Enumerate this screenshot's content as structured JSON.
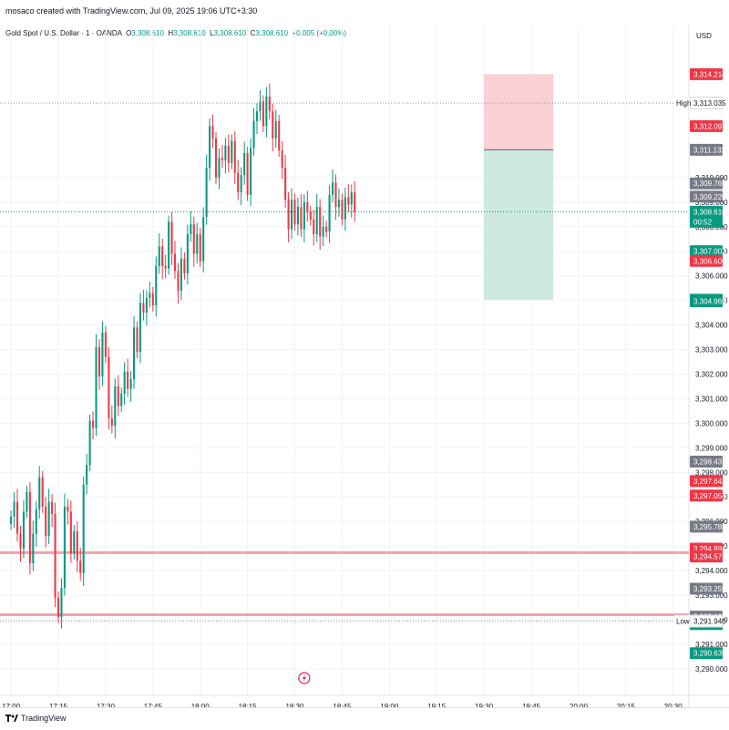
{
  "header": {
    "credit": "mosaco created with TradingView.com, Jul 09, 2025 19:06 UTC+3:30",
    "symbol": "Gold Spot / U.S. Dollar · 1 · OANDA",
    "ohlc": {
      "o_label": "O",
      "o": "3,308.610",
      "h_label": "H",
      "h": "3,308.610",
      "l_label": "L",
      "l": "3,308.610",
      "c_label": "C",
      "c": "3,308.610",
      "change": "+0.005 (+0.00%)"
    }
  },
  "axis": {
    "currency": "USD"
  },
  "footer": {
    "brand": "TradingView"
  },
  "colors": {
    "up": "#089981",
    "down": "#f23645",
    "grid": "#f0f3fa",
    "stop_zone": "#f9d0d4",
    "target_zone": "#cde9e2",
    "level_line": "#f7a1a8",
    "tag_gray": "#787b86"
  },
  "chart_data": {
    "type": "candlestick",
    "ylim": [
      3289.4,
      3315.6
    ],
    "y_ticks": [
      "3,290.000",
      "3,291.000",
      "3,292.000",
      "3,293.000",
      "3,294.000",
      "3,295.000",
      "3,296.000",
      "3,297.000",
      "3,298.000",
      "3,299.000",
      "3,300.000",
      "3,301.000",
      "3,302.000",
      "3,303.000",
      "3,304.000",
      "3,305.000",
      "3,306.000",
      "3,307.000",
      "3,308.000",
      "3,309.000",
      "3,310.000"
    ],
    "x_ticks": [
      "17:00",
      "17:15",
      "17:30",
      "17:45",
      "18:00",
      "18:15",
      "18:30",
      "18:45",
      "19:00",
      "19:15",
      "19:30",
      "19:45",
      "20:00",
      "20:15",
      "20:30"
    ],
    "x_range_minutes": [
      -3.5,
      215
    ],
    "candle_close_path": [
      3296.2,
      3296.8,
      3295.5,
      3294.9,
      3296.4,
      3297.2,
      3294.3,
      3295.5,
      3296.5,
      3297.8,
      3296.6,
      3295.4,
      3296.8,
      3296.3,
      3292.9,
      3292.1,
      3293.3,
      3296.6,
      3296.4,
      3294.7,
      3295.6,
      3294.4,
      3293.9,
      3297.5,
      3298.3,
      3300.1,
      3299.8,
      3303.1,
      3301.9,
      3303.7,
      3302.7,
      3300.2,
      3299.9,
      3301.5,
      3300.7,
      3301.2,
      3302.1,
      3301.4,
      3301.8,
      3303.9,
      3302.9,
      3304.9,
      3304.5,
      3305.1,
      3305.3,
      3304.8,
      3306.4,
      3307.2,
      3306.4,
      3306.3,
      3308.2,
      3306.9,
      3306.2,
      3305.4,
      3306.7,
      3306.1,
      3307.7,
      3308.1,
      3306.9,
      3307.7,
      3306.6,
      3308.4,
      3310.4,
      3312.1,
      3311.6,
      3310.0,
      3310.8,
      3310.7,
      3311.3,
      3310.6,
      3311.5,
      3310.2,
      3309.4,
      3310.1,
      3311.0,
      3309.3,
      3311.2,
      3312.3,
      3312.7,
      3313.1,
      3312.1,
      3313.3,
      3312.7,
      3311.6,
      3312.3,
      3311.1,
      3310.4,
      3309.1,
      3307.9,
      3309.1,
      3308.1,
      3308.8,
      3307.9,
      3309.0,
      3308.6,
      3308.3,
      3307.7,
      3308.8,
      3307.6,
      3308.0,
      3307.8,
      3309.3,
      3309.8,
      3308.8,
      3309.1,
      3308.3,
      3309.2,
      3308.9,
      3309.4,
      3308.6
    ],
    "reference_levels": [
      {
        "label": "High",
        "value": 3313.035,
        "text": "3,313.035"
      },
      {
        "label": "Low",
        "value": 3291.94,
        "text": "3,291.940"
      }
    ],
    "current_price": {
      "value": 3308.61,
      "text": "3,308.610",
      "countdown": "00:52"
    },
    "horizontal_lines": [
      3294.73,
      3292.2
    ],
    "position_tool": {
      "entry": 3311.132,
      "stop": 3314.214,
      "target": 3305.029,
      "start_minute": 150,
      "end_minute": 172
    },
    "price_tags": [
      {
        "value": 3314.214,
        "text": "3,314.214",
        "color": "#f23645"
      },
      {
        "value": 3312.097,
        "text": "3,312.097",
        "color": "#f23645"
      },
      {
        "value": 3311.132,
        "text": "3,311.132",
        "color": "#787b86"
      },
      {
        "value": 3309.765,
        "text": "3,309.765",
        "color": "#787b86"
      },
      {
        "value": 3309.225,
        "text": "3,309.225",
        "color": "#787b86"
      },
      {
        "value": 3307.002,
        "text": "3,307.002",
        "color": "#089981"
      },
      {
        "value": 3306.609,
        "text": "3,306.609",
        "color": "#f23645"
      },
      {
        "value": 3305.029,
        "text": "3,305.029",
        "color": "#089981"
      },
      {
        "value": 3304.969,
        "text": "3,304.969",
        "color": "#089981"
      },
      {
        "value": 3298.437,
        "text": "3,298.437",
        "color": "#787b86"
      },
      {
        "value": 3297.641,
        "text": "3,297.641",
        "color": "#f23645"
      },
      {
        "value": 3297.054,
        "text": "3,297.054",
        "color": "#f23645"
      },
      {
        "value": 3295.788,
        "text": "3,295.788",
        "color": "#787b86"
      },
      {
        "value": 3294.891,
        "text": "3,294.891",
        "color": "#f23645"
      },
      {
        "value": 3294.571,
        "text": "3,294.571",
        "color": "#f23645"
      },
      {
        "value": 3293.259,
        "text": "3,293.259",
        "color": "#787b86"
      },
      {
        "value": 3292.125,
        "text": "3,292.125",
        "color": "#787b86"
      },
      {
        "value": 3291.822,
        "text": "3,291.822",
        "color": "#089981"
      },
      {
        "value": 3290.635,
        "text": "3,290.635",
        "color": "#089981"
      }
    ],
    "icons": [
      "lightning-icon"
    ]
  }
}
